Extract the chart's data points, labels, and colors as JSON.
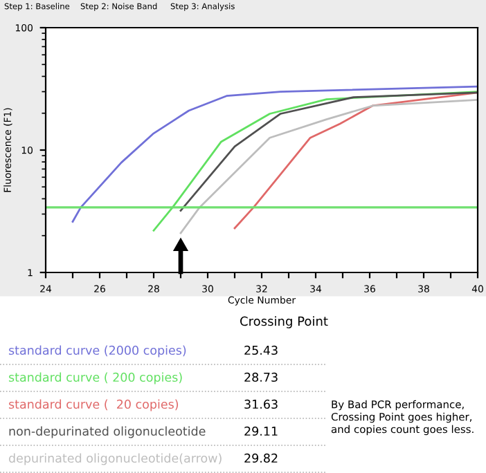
{
  "chart_data": {
    "type": "line",
    "xlabel": "Cycle Number",
    "ylabel": "Fluorescence (F1)",
    "log": "y",
    "xlim": [
      24,
      40
    ],
    "xticks": [
      24,
      {
        "value": 25,
        "label": null
      },
      26,
      {
        "value": 27,
        "label": null
      },
      28,
      {
        "value": 29,
        "label": null
      },
      30,
      {
        "value": 31,
        "label": null
      },
      32,
      {
        "value": 33,
        "label": null
      },
      34,
      {
        "value": 35,
        "label": null
      },
      36,
      {
        "value": 37,
        "label": null
      },
      38,
      {
        "value": 39,
        "label": null
      },
      40
    ],
    "ylim": [
      1,
      100
    ],
    "yticks": [
      1,
      10,
      100
    ],
    "grid": false,
    "marker": "none",
    "line_style": "solid",
    "series": [
      {
        "name": "standard curve (2000 copies)",
        "color": "#7070d8",
        "x": [
          25.0,
          25.3,
          26.8,
          28.0,
          29.3,
          30.7,
          32.7,
          40
        ],
        "values": [
          2.6,
          3.4,
          7.9,
          13.7,
          21,
          27.7,
          30,
          33
        ]
      },
      {
        "name": "standard curve ( 200 copies)",
        "color": "#60e060",
        "x": [
          28.0,
          28.7,
          30.5,
          32.3,
          34.4,
          40
        ],
        "values": [
          2.2,
          3.4,
          11.7,
          19.8,
          26,
          30
        ]
      },
      {
        "name": "standard curve (  20 copies)",
        "color": "#e06868",
        "x": [
          31.0,
          31.7,
          33.8,
          34.9,
          36.1,
          40
        ],
        "values": [
          2.3,
          3.4,
          12.6,
          16.4,
          23,
          29.5
        ]
      },
      {
        "name": "non-depurinated oligonucleotide",
        "color": "#505050",
        "x": [
          29.0,
          31.0,
          32.7,
          35.4,
          40
        ],
        "values": [
          3.2,
          10.7,
          19.8,
          27,
          29.5
        ]
      },
      {
        "name": "depurinated oligonucleotide(arrow)",
        "color": "#bdbdbd",
        "x": [
          29.0,
          29.7,
          32.3,
          34.4,
          36.1,
          40
        ],
        "values": [
          2.1,
          3.4,
          12.6,
          17.8,
          23,
          25.7
        ]
      }
    ],
    "ref_lines": [
      {
        "axis": "y",
        "value": 3.4,
        "color": "#70e070"
      }
    ],
    "annotations": [
      "Step 1: Baseline",
      "Step 2: Noise Band",
      "Step 3: Analysis",
      "Crossing Point",
      "25.43",
      "28.73",
      "31.63",
      "29.11",
      "29.82",
      "By Bad PCR performance,\nCrossing Point goes higher,\nand copies count goes less."
    ]
  }
}
